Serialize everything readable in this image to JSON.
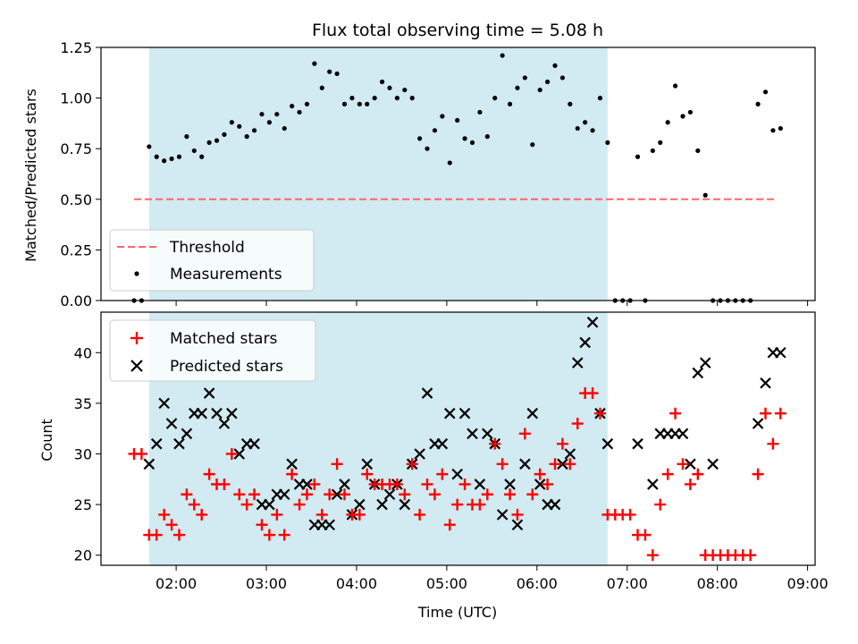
{
  "chart_data": [
    {
      "type": "scatter",
      "title": "Flux total observing time = 5.08 h",
      "xlabel": "",
      "ylabel": "Matched/Predicted stars",
      "xlim": [
        "01:10",
        "09:05"
      ],
      "ylim": [
        0,
        1.25
      ],
      "yticks": [
        "0.00",
        "0.25",
        "0.50",
        "0.75",
        "1.00",
        "1.25"
      ],
      "shaded_interval": [
        "01:42",
        "06:47"
      ],
      "shade_color": "#add8e6",
      "legend_placement": "lower-left",
      "threshold": {
        "name": "Threshold",
        "y": 0.5,
        "x_range": [
          "01:32",
          "08:40"
        ],
        "color": "#ff6666",
        "style": "dashed"
      },
      "series": [
        {
          "name": "Measurements",
          "color": "#000000",
          "marker": "dot",
          "x": [
            "01:32",
            "01:37",
            "01:42",
            "01:47",
            "01:52",
            "01:57",
            "02:02",
            "02:07",
            "02:12",
            "02:17",
            "02:22",
            "02:27",
            "02:32",
            "02:37",
            "02:42",
            "02:47",
            "02:52",
            "02:57",
            "03:02",
            "03:07",
            "03:12",
            "03:17",
            "03:22",
            "03:27",
            "03:32",
            "03:37",
            "03:42",
            "03:47",
            "03:52",
            "03:57",
            "04:02",
            "04:07",
            "04:12",
            "04:17",
            "04:22",
            "04:27",
            "04:32",
            "04:37",
            "04:42",
            "04:47",
            "04:52",
            "04:57",
            "05:02",
            "05:07",
            "05:12",
            "05:17",
            "05:22",
            "05:27",
            "05:32",
            "05:37",
            "05:42",
            "05:47",
            "05:52",
            "05:57",
            "06:02",
            "06:07",
            "06:12",
            "06:17",
            "06:22",
            "06:27",
            "06:32",
            "06:37",
            "06:42",
            "06:47",
            "06:52",
            "06:57",
            "07:02",
            "07:07",
            "07:12",
            "07:17",
            "07:22",
            "07:27",
            "07:32",
            "07:37",
            "07:42",
            "07:47",
            "07:52",
            "07:57",
            "08:02",
            "08:07",
            "08:12",
            "08:17",
            "08:22",
            "08:27",
            "08:32",
            "08:37",
            "08:42"
          ],
          "y": [
            0,
            0,
            0.76,
            0.71,
            0.69,
            0.7,
            0.71,
            0.81,
            0.74,
            0.71,
            0.78,
            0.79,
            0.82,
            0.88,
            0.86,
            0.81,
            0.84,
            0.92,
            0.88,
            0.92,
            0.85,
            0.96,
            0.93,
            0.97,
            1.17,
            1.05,
            1.13,
            1.12,
            0.97,
            1.0,
            0.97,
            0.97,
            1.0,
            1.08,
            1.05,
            1.0,
            1.04,
            1.0,
            0.8,
            0.75,
            0.84,
            0.91,
            0.68,
            0.89,
            0.8,
            0.78,
            0.93,
            0.81,
            1.0,
            1.21,
            0.97,
            1.05,
            1.1,
            0.77,
            1.04,
            1.08,
            1.16,
            1.1,
            0.97,
            0.85,
            0.88,
            0.84,
            1.0,
            0.78,
            0,
            0,
            0,
            0.71,
            0,
            0.74,
            0.78,
            0.88,
            1.06,
            0.91,
            0.93,
            0.74,
            0.52,
            0,
            0,
            0,
            0,
            0,
            0,
            0.97,
            1.03,
            0.84,
            0.85
          ]
        }
      ]
    },
    {
      "type": "scatter",
      "title": "",
      "xlabel": "Time (UTC)",
      "ylabel": "Count",
      "xlim": [
        "01:10",
        "09:05"
      ],
      "ylim": [
        19,
        44
      ],
      "yticks": [
        "20",
        "25",
        "30",
        "35",
        "40"
      ],
      "xticks": [
        "02:00",
        "03:00",
        "04:00",
        "05:00",
        "06:00",
        "07:00",
        "08:00",
        "09:00"
      ],
      "shaded_interval": [
        "01:42",
        "06:47"
      ],
      "shade_color": "#add8e6",
      "legend_placement": "upper-left",
      "series": [
        {
          "name": "Matched stars",
          "color": "#ff0000",
          "marker": "plus",
          "x": [
            "01:32",
            "01:37",
            "01:42",
            "01:47",
            "01:52",
            "01:57",
            "02:02",
            "02:07",
            "02:12",
            "02:17",
            "02:22",
            "02:27",
            "02:32",
            "02:37",
            "02:42",
            "02:47",
            "02:52",
            "02:57",
            "03:02",
            "03:07",
            "03:12",
            "03:17",
            "03:22",
            "03:27",
            "03:32",
            "03:37",
            "03:42",
            "03:47",
            "03:52",
            "03:57",
            "04:02",
            "04:07",
            "04:12",
            "04:17",
            "04:22",
            "04:27",
            "04:32",
            "04:37",
            "04:42",
            "04:47",
            "04:52",
            "04:57",
            "05:02",
            "05:07",
            "05:12",
            "05:17",
            "05:22",
            "05:27",
            "05:32",
            "05:37",
            "05:42",
            "05:47",
            "05:52",
            "05:57",
            "06:02",
            "06:07",
            "06:12",
            "06:17",
            "06:22",
            "06:27",
            "06:32",
            "06:37",
            "06:42",
            "06:47",
            "06:52",
            "06:57",
            "07:02",
            "07:07",
            "07:12",
            "07:17",
            "07:22",
            "07:27",
            "07:32",
            "07:37",
            "07:42",
            "07:47",
            "07:52",
            "07:57",
            "08:02",
            "08:07",
            "08:12",
            "08:17",
            "08:22",
            "08:27",
            "08:32",
            "08:37",
            "08:42"
          ],
          "y": [
            30,
            30,
            22,
            22,
            24,
            23,
            22,
            26,
            25,
            24,
            28,
            27,
            27,
            30,
            26,
            25,
            26,
            23,
            22,
            24,
            22,
            28,
            25,
            26,
            27,
            24,
            26,
            29,
            26,
            24,
            24,
            28,
            27,
            27,
            27,
            27,
            26,
            29,
            24,
            27,
            26,
            28,
            23,
            25,
            27,
            25,
            25,
            26,
            31,
            29,
            26,
            24,
            32,
            26,
            28,
            27,
            29,
            31,
            29,
            33,
            36,
            36,
            34,
            24,
            24,
            24,
            24,
            22,
            22,
            20,
            25,
            28,
            34,
            29,
            27,
            28,
            20,
            20,
            20,
            20,
            20,
            20,
            20,
            28,
            34,
            31,
            34
          ]
        },
        {
          "name": "Predicted stars",
          "color": "#000000",
          "marker": "x",
          "x": [
            "01:42",
            "01:47",
            "01:52",
            "01:57",
            "02:02",
            "02:07",
            "02:12",
            "02:17",
            "02:22",
            "02:27",
            "02:32",
            "02:37",
            "02:42",
            "02:47",
            "02:52",
            "02:57",
            "03:02",
            "03:07",
            "03:12",
            "03:17",
            "03:22",
            "03:27",
            "03:32",
            "03:37",
            "03:42",
            "03:47",
            "03:52",
            "03:57",
            "04:02",
            "04:07",
            "04:12",
            "04:17",
            "04:22",
            "04:27",
            "04:32",
            "04:37",
            "04:42",
            "04:47",
            "04:52",
            "04:57",
            "05:02",
            "05:07",
            "05:12",
            "05:17",
            "05:22",
            "05:27",
            "05:32",
            "05:37",
            "05:42",
            "05:47",
            "05:52",
            "05:57",
            "06:02",
            "06:07",
            "06:12",
            "06:17",
            "06:22",
            "06:27",
            "06:32",
            "06:37",
            "06:42",
            "06:47",
            "07:07",
            "07:17",
            "07:22",
            "07:27",
            "07:32",
            "07:37",
            "07:42",
            "07:47",
            "07:52",
            "07:57",
            "08:27",
            "08:32",
            "08:37",
            "08:42"
          ],
          "y": [
            29,
            31,
            35,
            33,
            31,
            32,
            34,
            34,
            36,
            34,
            33,
            34,
            30,
            31,
            31,
            25,
            25,
            26,
            26,
            29,
            27,
            27,
            23,
            23,
            23,
            26,
            27,
            24,
            25,
            29,
            27,
            25,
            26,
            27,
            25,
            29,
            30,
            36,
            31,
            31,
            34,
            28,
            34,
            32,
            27,
            32,
            31,
            24,
            27,
            23,
            29,
            34,
            27,
            25,
            25,
            29,
            30,
            39,
            41,
            43,
            34,
            31,
            31,
            27,
            32,
            32,
            32,
            32,
            29,
            38,
            39,
            29,
            33,
            37,
            40,
            40
          ]
        }
      ]
    }
  ]
}
